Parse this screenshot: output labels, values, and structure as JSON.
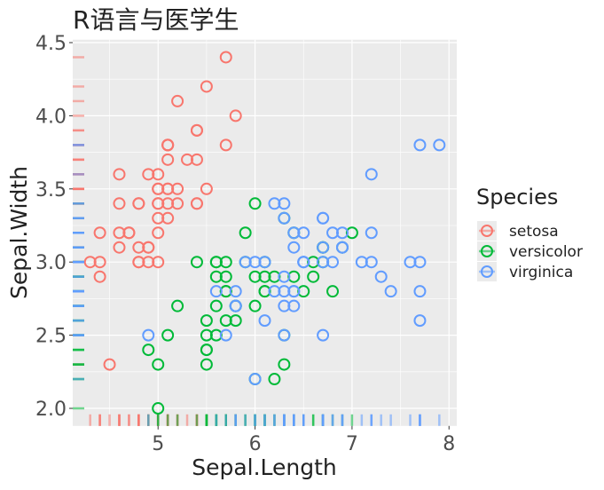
{
  "chart_data": {
    "type": "scatter",
    "title": "R语言与医学生",
    "x_label": "Sepal.Length",
    "y_label": "Sepal.Width",
    "legend_title": "Species",
    "xlim": [
      4.12,
      8.08
    ],
    "ylim": [
      1.88,
      4.52
    ],
    "xticks": [
      5,
      6,
      7,
      8
    ],
    "yticks": [
      {
        "value": 2,
        "label": "2.0"
      },
      {
        "value": 2.5,
        "label": "2.5"
      },
      {
        "value": 3,
        "label": "3.0"
      },
      {
        "value": 3.5,
        "label": "3.5"
      },
      {
        "value": 4,
        "label": "4.0"
      },
      {
        "value": 4.5,
        "label": "4.5"
      }
    ],
    "grid": true,
    "rug": true,
    "legend_position": "right",
    "series": [
      {
        "name": "setosa",
        "color": "#F8766D",
        "x": [
          5.1,
          4.9,
          4.7,
          4.6,
          5.0,
          5.4,
          4.6,
          5.0,
          4.4,
          4.9,
          5.4,
          4.8,
          4.8,
          4.3,
          5.8,
          5.7,
          5.4,
          5.1,
          5.7,
          5.1,
          5.4,
          5.1,
          4.6,
          5.1,
          4.8,
          5.0,
          5.0,
          5.2,
          5.2,
          4.7,
          4.8,
          5.4,
          5.2,
          5.5,
          4.9,
          5.0,
          5.5,
          4.9,
          4.4,
          5.1,
          5.0,
          4.5,
          4.4,
          5.0,
          5.1,
          4.8,
          5.1,
          4.6,
          5.3,
          5.0
        ],
        "values": [
          3.5,
          3.0,
          3.2,
          3.1,
          3.6,
          3.9,
          3.4,
          3.4,
          2.9,
          3.1,
          3.7,
          3.4,
          3.0,
          3.0,
          4.0,
          4.4,
          3.9,
          3.5,
          3.8,
          3.8,
          3.4,
          3.7,
          3.6,
          3.3,
          3.4,
          3.0,
          3.4,
          3.5,
          3.4,
          3.2,
          3.1,
          3.4,
          4.1,
          4.2,
          3.1,
          3.2,
          3.5,
          3.6,
          3.0,
          3.4,
          3.5,
          2.3,
          3.2,
          3.5,
          3.8,
          3.0,
          3.8,
          3.2,
          3.7,
          3.3
        ]
      },
      {
        "name": "versicolor",
        "color": "#00BA38",
        "x": [
          7.0,
          6.4,
          6.9,
          5.5,
          6.5,
          5.7,
          6.3,
          4.9,
          6.6,
          5.2,
          5.0,
          5.9,
          6.0,
          6.1,
          5.6,
          6.7,
          5.6,
          5.8,
          6.2,
          5.6,
          5.9,
          6.1,
          6.3,
          6.1,
          6.4,
          6.6,
          6.8,
          6.7,
          6.0,
          5.7,
          5.5,
          5.5,
          5.8,
          6.0,
          5.4,
          6.0,
          6.7,
          6.3,
          5.6,
          5.5,
          5.5,
          6.1,
          5.8,
          5.0,
          5.6,
          5.7,
          5.7,
          6.2,
          5.1,
          5.7
        ],
        "values": [
          3.2,
          3.2,
          3.1,
          2.3,
          2.8,
          2.8,
          3.3,
          2.4,
          2.9,
          2.7,
          2.0,
          3.0,
          2.2,
          2.9,
          2.9,
          3.1,
          3.0,
          2.7,
          2.2,
          2.5,
          3.2,
          2.8,
          2.5,
          2.8,
          2.9,
          3.0,
          2.8,
          3.0,
          2.9,
          2.6,
          2.4,
          2.4,
          2.7,
          2.7,
          3.0,
          3.4,
          3.1,
          2.3,
          3.0,
          2.5,
          2.6,
          3.0,
          2.6,
          2.3,
          2.7,
          3.0,
          2.9,
          2.9,
          2.5,
          2.8
        ]
      },
      {
        "name": "virginica",
        "color": "#619CFF",
        "x": [
          6.3,
          5.8,
          7.1,
          6.3,
          6.5,
          7.6,
          4.9,
          7.3,
          6.7,
          7.2,
          6.5,
          6.4,
          6.8,
          5.7,
          5.8,
          6.4,
          6.5,
          7.7,
          7.7,
          6.0,
          6.9,
          5.6,
          7.7,
          6.3,
          6.7,
          7.2,
          6.2,
          6.1,
          6.4,
          7.2,
          7.4,
          7.9,
          6.4,
          6.3,
          6.1,
          7.7,
          6.3,
          6.4,
          6.0,
          6.9,
          6.7,
          6.9,
          5.8,
          6.8,
          6.7,
          6.7,
          6.3,
          6.5,
          6.2,
          5.9
        ],
        "values": [
          3.3,
          2.7,
          3.0,
          2.9,
          3.0,
          3.0,
          2.5,
          2.9,
          2.5,
          3.6,
          3.2,
          2.7,
          3.0,
          2.5,
          2.8,
          3.2,
          3.0,
          3.8,
          2.6,
          2.2,
          3.2,
          2.8,
          2.8,
          2.7,
          3.3,
          3.2,
          2.8,
          3.0,
          2.8,
          3.0,
          2.8,
          3.8,
          2.8,
          2.8,
          2.6,
          3.0,
          3.4,
          3.1,
          3.0,
          3.1,
          3.1,
          3.1,
          2.7,
          3.2,
          3.3,
          3.0,
          2.5,
          3.0,
          3.4,
          3.0
        ]
      }
    ]
  }
}
